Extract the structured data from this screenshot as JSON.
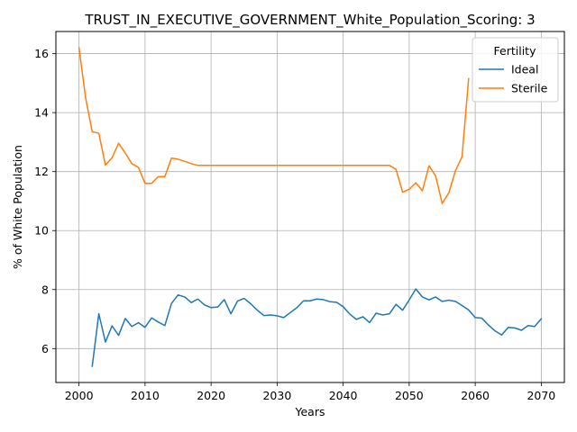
{
  "chart_data": {
    "type": "line",
    "title": "TRUST_IN_EXECUTIVE_GOVERNMENT_White_Population_Scoring: 3",
    "xlabel": "Years",
    "ylabel": "% of White Population",
    "xlim": [
      1996.5,
      2073.5
    ],
    "ylim": [
      4.85,
      16.75
    ],
    "xticks": [
      2000,
      2010,
      2020,
      2030,
      2040,
      2050,
      2060,
      2070
    ],
    "yticks": [
      6,
      8,
      10,
      12,
      14,
      16
    ],
    "grid": true,
    "legend": {
      "title": "Fertility",
      "position": "top-right"
    },
    "series": [
      {
        "name": "Ideal",
        "color": "#1f77b4",
        "x": [
          2002,
          2003,
          2004,
          2005,
          2006,
          2007,
          2008,
          2009,
          2010,
          2011,
          2012,
          2013,
          2014,
          2015,
          2016,
          2017,
          2018,
          2019,
          2020,
          2021,
          2022,
          2023,
          2024,
          2025,
          2026,
          2027,
          2028,
          2029,
          2030,
          2031,
          2032,
          2033,
          2034,
          2035,
          2036,
          2037,
          2038,
          2039,
          2040,
          2041,
          2042,
          2043,
          2044,
          2045,
          2046,
          2047,
          2048,
          2049,
          2050,
          2051,
          2052,
          2053,
          2054,
          2055,
          2056,
          2057,
          2058,
          2059,
          2060,
          2061,
          2062,
          2063,
          2064,
          2065,
          2066,
          2067,
          2068,
          2069,
          2070
        ],
        "values": [
          5.4,
          7.18,
          6.22,
          6.77,
          6.45,
          7.02,
          6.75,
          6.88,
          6.72,
          7.04,
          6.9,
          6.78,
          7.53,
          7.82,
          7.75,
          7.56,
          7.68,
          7.48,
          7.39,
          7.41,
          7.66,
          7.18,
          7.61,
          7.7,
          7.52,
          7.3,
          7.12,
          7.14,
          7.11,
          7.05,
          7.22,
          7.39,
          7.62,
          7.62,
          7.68,
          7.66,
          7.59,
          7.57,
          7.42,
          7.17,
          6.99,
          7.08,
          6.88,
          7.2,
          7.14,
          7.18,
          7.5,
          7.3,
          7.65,
          8.02,
          7.75,
          7.65,
          7.75,
          7.6,
          7.64,
          7.6,
          7.46,
          7.31,
          7.05,
          7.03,
          6.8,
          6.6,
          6.46,
          6.72,
          6.7,
          6.62,
          6.78,
          6.75,
          7.01
        ]
      },
      {
        "name": "Sterile",
        "color": "#ff7f0e",
        "x": [
          2000,
          2001,
          2002,
          2003,
          2004,
          2005,
          2006,
          2007,
          2008,
          2009,
          2010,
          2011,
          2012,
          2013,
          2014,
          2015,
          2016,
          2017,
          2018,
          2019,
          2020,
          2021,
          2022,
          2023,
          2024,
          2025,
          2026,
          2027,
          2028,
          2029,
          2030,
          2031,
          2032,
          2033,
          2034,
          2035,
          2036,
          2037,
          2038,
          2039,
          2040,
          2041,
          2042,
          2043,
          2044,
          2045,
          2046,
          2047,
          2048,
          2049,
          2050,
          2051,
          2052,
          2053,
          2054,
          2055,
          2056,
          2057,
          2058,
          2059
        ],
        "values": [
          16.2,
          14.5,
          13.35,
          13.3,
          12.22,
          12.47,
          12.96,
          12.63,
          12.27,
          12.14,
          11.6,
          11.6,
          11.83,
          11.83,
          12.46,
          12.42,
          12.35,
          12.27,
          12.21,
          12.21,
          12.21,
          12.21,
          12.21,
          12.21,
          12.21,
          12.21,
          12.21,
          12.21,
          12.21,
          12.21,
          12.21,
          12.21,
          12.21,
          12.21,
          12.21,
          12.21,
          12.21,
          12.21,
          12.21,
          12.21,
          12.21,
          12.21,
          12.21,
          12.21,
          12.21,
          12.21,
          12.21,
          12.21,
          12.08,
          11.3,
          11.4,
          11.62,
          11.35,
          12.2,
          11.85,
          10.92,
          11.28,
          12.03,
          12.5,
          15.15
        ]
      }
    ]
  }
}
